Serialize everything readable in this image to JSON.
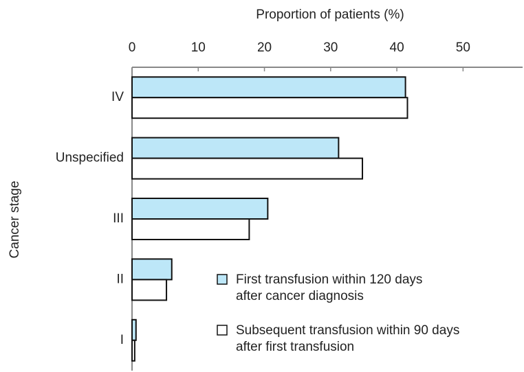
{
  "chart_data": {
    "type": "bar",
    "orientation": "horizontal",
    "x_label": "Proportion of patients (%)",
    "y_label": "Cancer stage",
    "categories": [
      "IV",
      "Unspecified",
      "III",
      "II",
      "I"
    ],
    "series": [
      {
        "name": "First transfusion within 120 days\nafter cancer diagnosis",
        "color": "#bde7f8",
        "values": [
          41.3,
          31.2,
          20.5,
          6.0,
          0.6
        ]
      },
      {
        "name": "Subsequent transfusion within 90 days\nafter first transfusion",
        "color": "#ffffff",
        "values": [
          41.6,
          34.8,
          17.7,
          5.2,
          0.4
        ]
      }
    ],
    "xlim": [
      0,
      59
    ],
    "xticks": [
      0,
      10,
      20,
      30,
      40,
      50
    ],
    "legend": "lower right"
  }
}
